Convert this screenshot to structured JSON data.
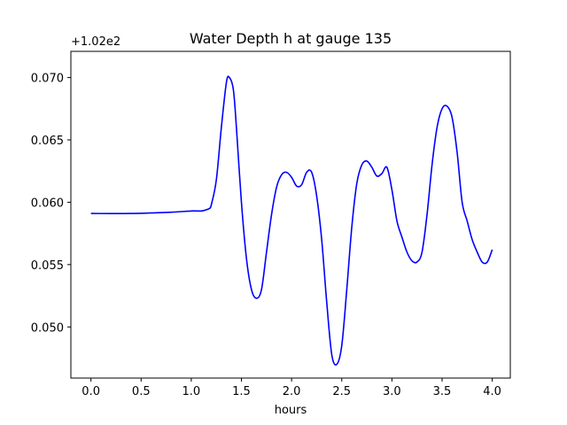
{
  "chart_data": {
    "type": "line",
    "title": "Water Depth h at gauge 135",
    "xlabel": "hours",
    "ylabel": "",
    "offset_label": "+1.02e2",
    "xlim": [
      -0.2,
      4.18
    ],
    "ylim": [
      0.0459,
      0.0721
    ],
    "x_ticks": [
      0.0,
      0.5,
      1.0,
      1.5,
      2.0,
      2.5,
      3.0,
      3.5,
      4.0
    ],
    "x_tick_labels": [
      "0.0",
      "0.5",
      "1.0",
      "1.5",
      "2.0",
      "2.5",
      "3.0",
      "3.5",
      "4.0"
    ],
    "y_ticks": [
      0.05,
      0.055,
      0.06,
      0.065,
      0.07
    ],
    "y_tick_labels": [
      "0.050",
      "0.055",
      "0.060",
      "0.065",
      "0.070"
    ],
    "grid": false,
    "series": [
      {
        "color": "#0000ff",
        "x": [
          0.0,
          0.4,
          0.8,
          1.0,
          1.1,
          1.15,
          1.18,
          1.2,
          1.25,
          1.3,
          1.35,
          1.38,
          1.42,
          1.45,
          1.5,
          1.55,
          1.6,
          1.65,
          1.7,
          1.75,
          1.8,
          1.85,
          1.9,
          1.95,
          2.0,
          2.05,
          2.1,
          2.15,
          2.2,
          2.25,
          2.3,
          2.35,
          2.4,
          2.45,
          2.5,
          2.55,
          2.6,
          2.65,
          2.7,
          2.75,
          2.8,
          2.85,
          2.9,
          2.95,
          3.0,
          3.05,
          3.1,
          3.15,
          3.2,
          3.25,
          3.3,
          3.35,
          3.4,
          3.45,
          3.5,
          3.55,
          3.6,
          3.65,
          3.7,
          3.75,
          3.8,
          3.85,
          3.9,
          3.95,
          4.0
        ],
        "y": [
          0.0591,
          0.0591,
          0.0592,
          0.0593,
          0.0593,
          0.0594,
          0.0595,
          0.0598,
          0.0618,
          0.066,
          0.0696,
          0.07,
          0.069,
          0.066,
          0.06,
          0.0555,
          0.053,
          0.0523,
          0.053,
          0.056,
          0.059,
          0.0612,
          0.0622,
          0.0624,
          0.062,
          0.0613,
          0.0614,
          0.0624,
          0.0624,
          0.0605,
          0.057,
          0.052,
          0.0478,
          0.047,
          0.0485,
          0.053,
          0.058,
          0.0615,
          0.063,
          0.0633,
          0.0628,
          0.0621,
          0.0623,
          0.0628,
          0.061,
          0.0585,
          0.0572,
          0.056,
          0.0553,
          0.0552,
          0.056,
          0.059,
          0.063,
          0.066,
          0.0675,
          0.0677,
          0.0668,
          0.064,
          0.06,
          0.0585,
          0.057,
          0.056,
          0.0552,
          0.0552,
          0.0562
        ]
      }
    ]
  }
}
